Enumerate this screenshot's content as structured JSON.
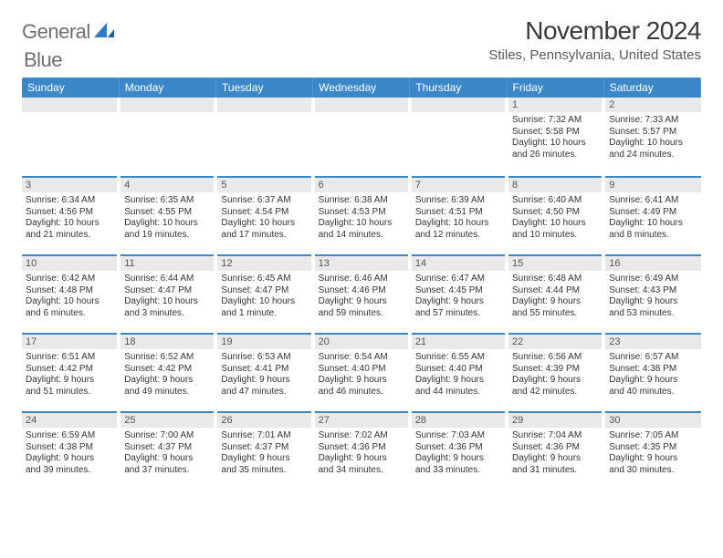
{
  "brand": {
    "word1": "General",
    "word2": "Blue"
  },
  "title": "November 2024",
  "location": "Stiles, Pennsylvania, United States",
  "colors": {
    "header_bg": "#3b87c8",
    "row_divider": "#3b87c8",
    "daynum_bg": "#e9e9e9",
    "text": "#333333",
    "logo_gray": "#6f6f6f",
    "logo_blue": "#2f78c4"
  },
  "day_headers": [
    "Sunday",
    "Monday",
    "Tuesday",
    "Wednesday",
    "Thursday",
    "Friday",
    "Saturday"
  ],
  "weeks": [
    [
      {
        "blank": true
      },
      {
        "blank": true
      },
      {
        "blank": true
      },
      {
        "blank": true
      },
      {
        "blank": true
      },
      {
        "num": "1",
        "sunrise": "Sunrise: 7:32 AM",
        "sunset": "Sunset: 5:58 PM",
        "day1": "Daylight: 10 hours",
        "day2": "and 26 minutes."
      },
      {
        "num": "2",
        "sunrise": "Sunrise: 7:33 AM",
        "sunset": "Sunset: 5:57 PM",
        "day1": "Daylight: 10 hours",
        "day2": "and 24 minutes."
      }
    ],
    [
      {
        "num": "3",
        "sunrise": "Sunrise: 6:34 AM",
        "sunset": "Sunset: 4:56 PM",
        "day1": "Daylight: 10 hours",
        "day2": "and 21 minutes."
      },
      {
        "num": "4",
        "sunrise": "Sunrise: 6:35 AM",
        "sunset": "Sunset: 4:55 PM",
        "day1": "Daylight: 10 hours",
        "day2": "and 19 minutes."
      },
      {
        "num": "5",
        "sunrise": "Sunrise: 6:37 AM",
        "sunset": "Sunset: 4:54 PM",
        "day1": "Daylight: 10 hours",
        "day2": "and 17 minutes."
      },
      {
        "num": "6",
        "sunrise": "Sunrise: 6:38 AM",
        "sunset": "Sunset: 4:53 PM",
        "day1": "Daylight: 10 hours",
        "day2": "and 14 minutes."
      },
      {
        "num": "7",
        "sunrise": "Sunrise: 6:39 AM",
        "sunset": "Sunset: 4:51 PM",
        "day1": "Daylight: 10 hours",
        "day2": "and 12 minutes."
      },
      {
        "num": "8",
        "sunrise": "Sunrise: 6:40 AM",
        "sunset": "Sunset: 4:50 PM",
        "day1": "Daylight: 10 hours",
        "day2": "and 10 minutes."
      },
      {
        "num": "9",
        "sunrise": "Sunrise: 6:41 AM",
        "sunset": "Sunset: 4:49 PM",
        "day1": "Daylight: 10 hours",
        "day2": "and 8 minutes."
      }
    ],
    [
      {
        "num": "10",
        "sunrise": "Sunrise: 6:42 AM",
        "sunset": "Sunset: 4:48 PM",
        "day1": "Daylight: 10 hours",
        "day2": "and 6 minutes."
      },
      {
        "num": "11",
        "sunrise": "Sunrise: 6:44 AM",
        "sunset": "Sunset: 4:47 PM",
        "day1": "Daylight: 10 hours",
        "day2": "and 3 minutes."
      },
      {
        "num": "12",
        "sunrise": "Sunrise: 6:45 AM",
        "sunset": "Sunset: 4:47 PM",
        "day1": "Daylight: 10 hours",
        "day2": "and 1 minute."
      },
      {
        "num": "13",
        "sunrise": "Sunrise: 6:46 AM",
        "sunset": "Sunset: 4:46 PM",
        "day1": "Daylight: 9 hours",
        "day2": "and 59 minutes."
      },
      {
        "num": "14",
        "sunrise": "Sunrise: 6:47 AM",
        "sunset": "Sunset: 4:45 PM",
        "day1": "Daylight: 9 hours",
        "day2": "and 57 minutes."
      },
      {
        "num": "15",
        "sunrise": "Sunrise: 6:48 AM",
        "sunset": "Sunset: 4:44 PM",
        "day1": "Daylight: 9 hours",
        "day2": "and 55 minutes."
      },
      {
        "num": "16",
        "sunrise": "Sunrise: 6:49 AM",
        "sunset": "Sunset: 4:43 PM",
        "day1": "Daylight: 9 hours",
        "day2": "and 53 minutes."
      }
    ],
    [
      {
        "num": "17",
        "sunrise": "Sunrise: 6:51 AM",
        "sunset": "Sunset: 4:42 PM",
        "day1": "Daylight: 9 hours",
        "day2": "and 51 minutes."
      },
      {
        "num": "18",
        "sunrise": "Sunrise: 6:52 AM",
        "sunset": "Sunset: 4:42 PM",
        "day1": "Daylight: 9 hours",
        "day2": "and 49 minutes."
      },
      {
        "num": "19",
        "sunrise": "Sunrise: 6:53 AM",
        "sunset": "Sunset: 4:41 PM",
        "day1": "Daylight: 9 hours",
        "day2": "and 47 minutes."
      },
      {
        "num": "20",
        "sunrise": "Sunrise: 6:54 AM",
        "sunset": "Sunset: 4:40 PM",
        "day1": "Daylight: 9 hours",
        "day2": "and 46 minutes."
      },
      {
        "num": "21",
        "sunrise": "Sunrise: 6:55 AM",
        "sunset": "Sunset: 4:40 PM",
        "day1": "Daylight: 9 hours",
        "day2": "and 44 minutes."
      },
      {
        "num": "22",
        "sunrise": "Sunrise: 6:56 AM",
        "sunset": "Sunset: 4:39 PM",
        "day1": "Daylight: 9 hours",
        "day2": "and 42 minutes."
      },
      {
        "num": "23",
        "sunrise": "Sunrise: 6:57 AM",
        "sunset": "Sunset: 4:38 PM",
        "day1": "Daylight: 9 hours",
        "day2": "and 40 minutes."
      }
    ],
    [
      {
        "num": "24",
        "sunrise": "Sunrise: 6:59 AM",
        "sunset": "Sunset: 4:38 PM",
        "day1": "Daylight: 9 hours",
        "day2": "and 39 minutes."
      },
      {
        "num": "25",
        "sunrise": "Sunrise: 7:00 AM",
        "sunset": "Sunset: 4:37 PM",
        "day1": "Daylight: 9 hours",
        "day2": "and 37 minutes."
      },
      {
        "num": "26",
        "sunrise": "Sunrise: 7:01 AM",
        "sunset": "Sunset: 4:37 PM",
        "day1": "Daylight: 9 hours",
        "day2": "and 35 minutes."
      },
      {
        "num": "27",
        "sunrise": "Sunrise: 7:02 AM",
        "sunset": "Sunset: 4:36 PM",
        "day1": "Daylight: 9 hours",
        "day2": "and 34 minutes."
      },
      {
        "num": "28",
        "sunrise": "Sunrise: 7:03 AM",
        "sunset": "Sunset: 4:36 PM",
        "day1": "Daylight: 9 hours",
        "day2": "and 33 minutes."
      },
      {
        "num": "29",
        "sunrise": "Sunrise: 7:04 AM",
        "sunset": "Sunset: 4:36 PM",
        "day1": "Daylight: 9 hours",
        "day2": "and 31 minutes."
      },
      {
        "num": "30",
        "sunrise": "Sunrise: 7:05 AM",
        "sunset": "Sunset: 4:35 PM",
        "day1": "Daylight: 9 hours",
        "day2": "and 30 minutes."
      }
    ]
  ]
}
